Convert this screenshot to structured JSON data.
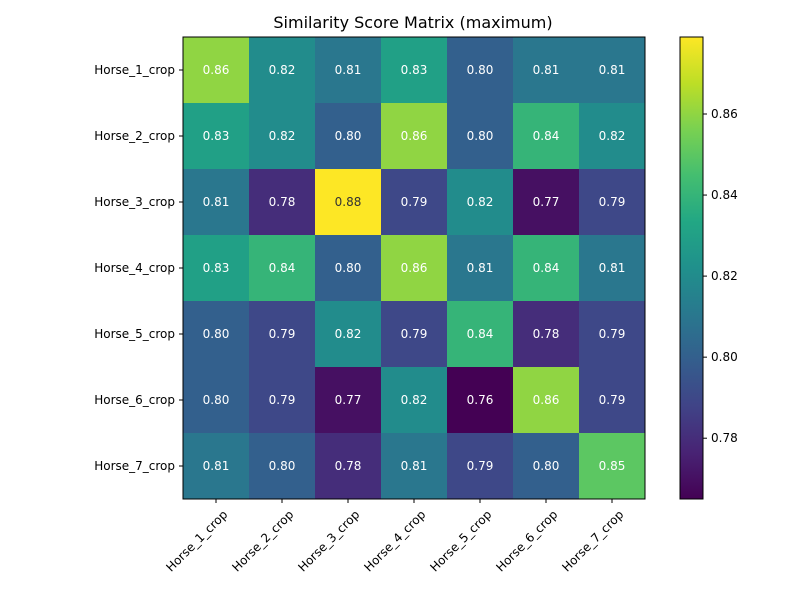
{
  "chart_data": {
    "type": "heatmap",
    "title": "Similarity Score Matrix (maximum)",
    "xlabel": "",
    "ylabel": "",
    "x_categories": [
      "Horse_1_crop",
      "Horse_2_crop",
      "Horse_3_crop",
      "Horse_4_crop",
      "Horse_5_crop",
      "Horse_6_crop",
      "Horse_7_crop"
    ],
    "y_categories": [
      "Horse_1_crop",
      "Horse_2_crop",
      "Horse_3_crop",
      "Horse_4_crop",
      "Horse_5_crop",
      "Horse_6_crop",
      "Horse_7_crop"
    ],
    "values": [
      [
        0.86,
        0.82,
        0.81,
        0.83,
        0.8,
        0.81,
        0.81
      ],
      [
        0.83,
        0.82,
        0.8,
        0.86,
        0.8,
        0.84,
        0.82
      ],
      [
        0.81,
        0.78,
        0.88,
        0.79,
        0.82,
        0.77,
        0.79
      ],
      [
        0.83,
        0.84,
        0.8,
        0.86,
        0.81,
        0.84,
        0.81
      ],
      [
        0.8,
        0.79,
        0.82,
        0.79,
        0.84,
        0.78,
        0.79
      ],
      [
        0.8,
        0.79,
        0.77,
        0.82,
        0.76,
        0.86,
        0.79
      ],
      [
        0.81,
        0.8,
        0.78,
        0.81,
        0.79,
        0.8,
        0.85
      ]
    ],
    "cell_value_format": "2 decimals",
    "colormap": "viridis",
    "color_range": [
      0.765,
      0.879
    ],
    "colorbar_ticks": [
      0.78,
      0.8,
      0.82,
      0.84,
      0.86
    ],
    "colorbar_tick_labels": [
      "0.78",
      "0.80",
      "0.82",
      "0.84",
      "0.86"
    ],
    "x_tick_rotation_deg": 45,
    "grid": false,
    "colorbar": "right"
  }
}
